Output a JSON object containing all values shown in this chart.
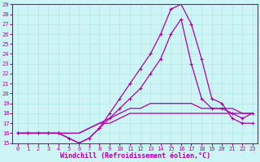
{
  "xlabel": "Windchill (Refroidissement éolien,°C)",
  "background_color": "#cef5f5",
  "line_color": "#aa00aa",
  "grid_color": "#b0e8e8",
  "xlim": [
    -0.5,
    23.5
  ],
  "ylim": [
    15,
    29
  ],
  "yticks": [
    15,
    16,
    17,
    18,
    19,
    20,
    21,
    22,
    23,
    24,
    25,
    26,
    27,
    28,
    29
  ],
  "xticks": [
    0,
    1,
    2,
    3,
    4,
    5,
    6,
    7,
    8,
    9,
    10,
    11,
    12,
    13,
    14,
    15,
    16,
    17,
    18,
    19,
    20,
    21,
    22,
    23
  ],
  "series": [
    [
      16,
      16,
      16,
      16,
      16,
      15.5,
      15,
      15.5,
      16.5,
      18,
      19.5,
      21,
      22.5,
      24,
      26,
      28.5,
      29,
      27,
      23.5,
      19.5,
      19,
      17.5,
      17,
      17
    ],
    [
      16,
      16,
      16,
      16,
      16,
      15.5,
      15,
      15.5,
      16.5,
      17.5,
      18.5,
      19.5,
      20.5,
      22,
      23.5,
      26,
      27.5,
      23,
      19.5,
      18.5,
      18.5,
      18,
      17.5,
      18
    ],
    [
      16,
      16,
      16,
      16,
      16,
      16,
      16,
      16.5,
      17,
      17.5,
      18,
      18.5,
      18.5,
      19,
      19,
      19,
      19,
      19,
      18.5,
      18.5,
      18.5,
      18.5,
      18,
      18
    ],
    [
      16,
      16,
      16,
      16,
      16,
      16,
      16,
      16.5,
      17,
      17,
      17.5,
      18,
      18,
      18,
      18,
      18,
      18,
      18,
      18,
      18,
      18,
      18,
      18,
      18
    ]
  ],
  "series_markers": [
    true,
    true,
    false,
    false
  ],
  "marker": "+",
  "markersize": 3.5,
  "linewidth": 0.9,
  "tick_fontsize": 5,
  "label_fontsize": 6
}
